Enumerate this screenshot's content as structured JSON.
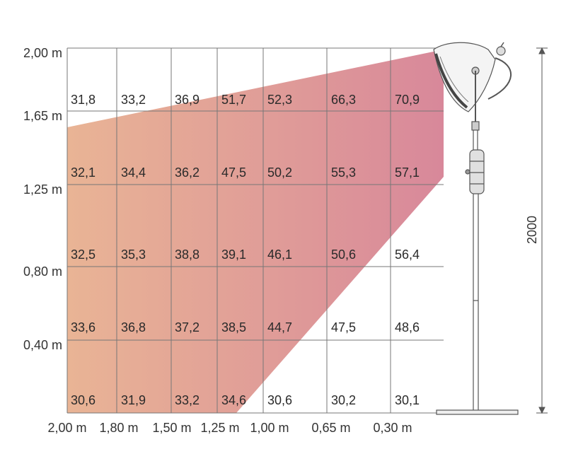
{
  "colors": {
    "beam_left": "#e9b495",
    "beam_right": "#d8889a",
    "grid": "#777777",
    "text": "#333333",
    "heater": "#555555"
  },
  "y_labels": [
    "2,00 m",
    "1,65 m",
    "1,25 m",
    "0,80 m",
    "0,40 m"
  ],
  "x_labels": [
    "2,00 m",
    "1,80 m",
    "1,50 m",
    "1,25 m",
    "1,00 m",
    "0,65 m",
    "0,30 m"
  ],
  "height_label": "2000",
  "temperature_rows": [
    [
      "31,8",
      "33,2",
      "36,9",
      "51,7",
      "52,3",
      "66,3",
      "70,9"
    ],
    [
      "32,1",
      "34,4",
      "36,2",
      "47,5",
      "50,2",
      "55,3",
      "57,1"
    ],
    [
      "32,5",
      "35,3",
      "38,8",
      "39,1",
      "46,1",
      "50,6",
      "56,4"
    ],
    [
      "33,6",
      "36,8",
      "37,2",
      "38,5",
      "44,7",
      "47,5",
      "48,6"
    ],
    [
      "30,6",
      "31,9",
      "33,2",
      "34,6",
      "30,6",
      "30,2",
      "30,1"
    ]
  ]
}
